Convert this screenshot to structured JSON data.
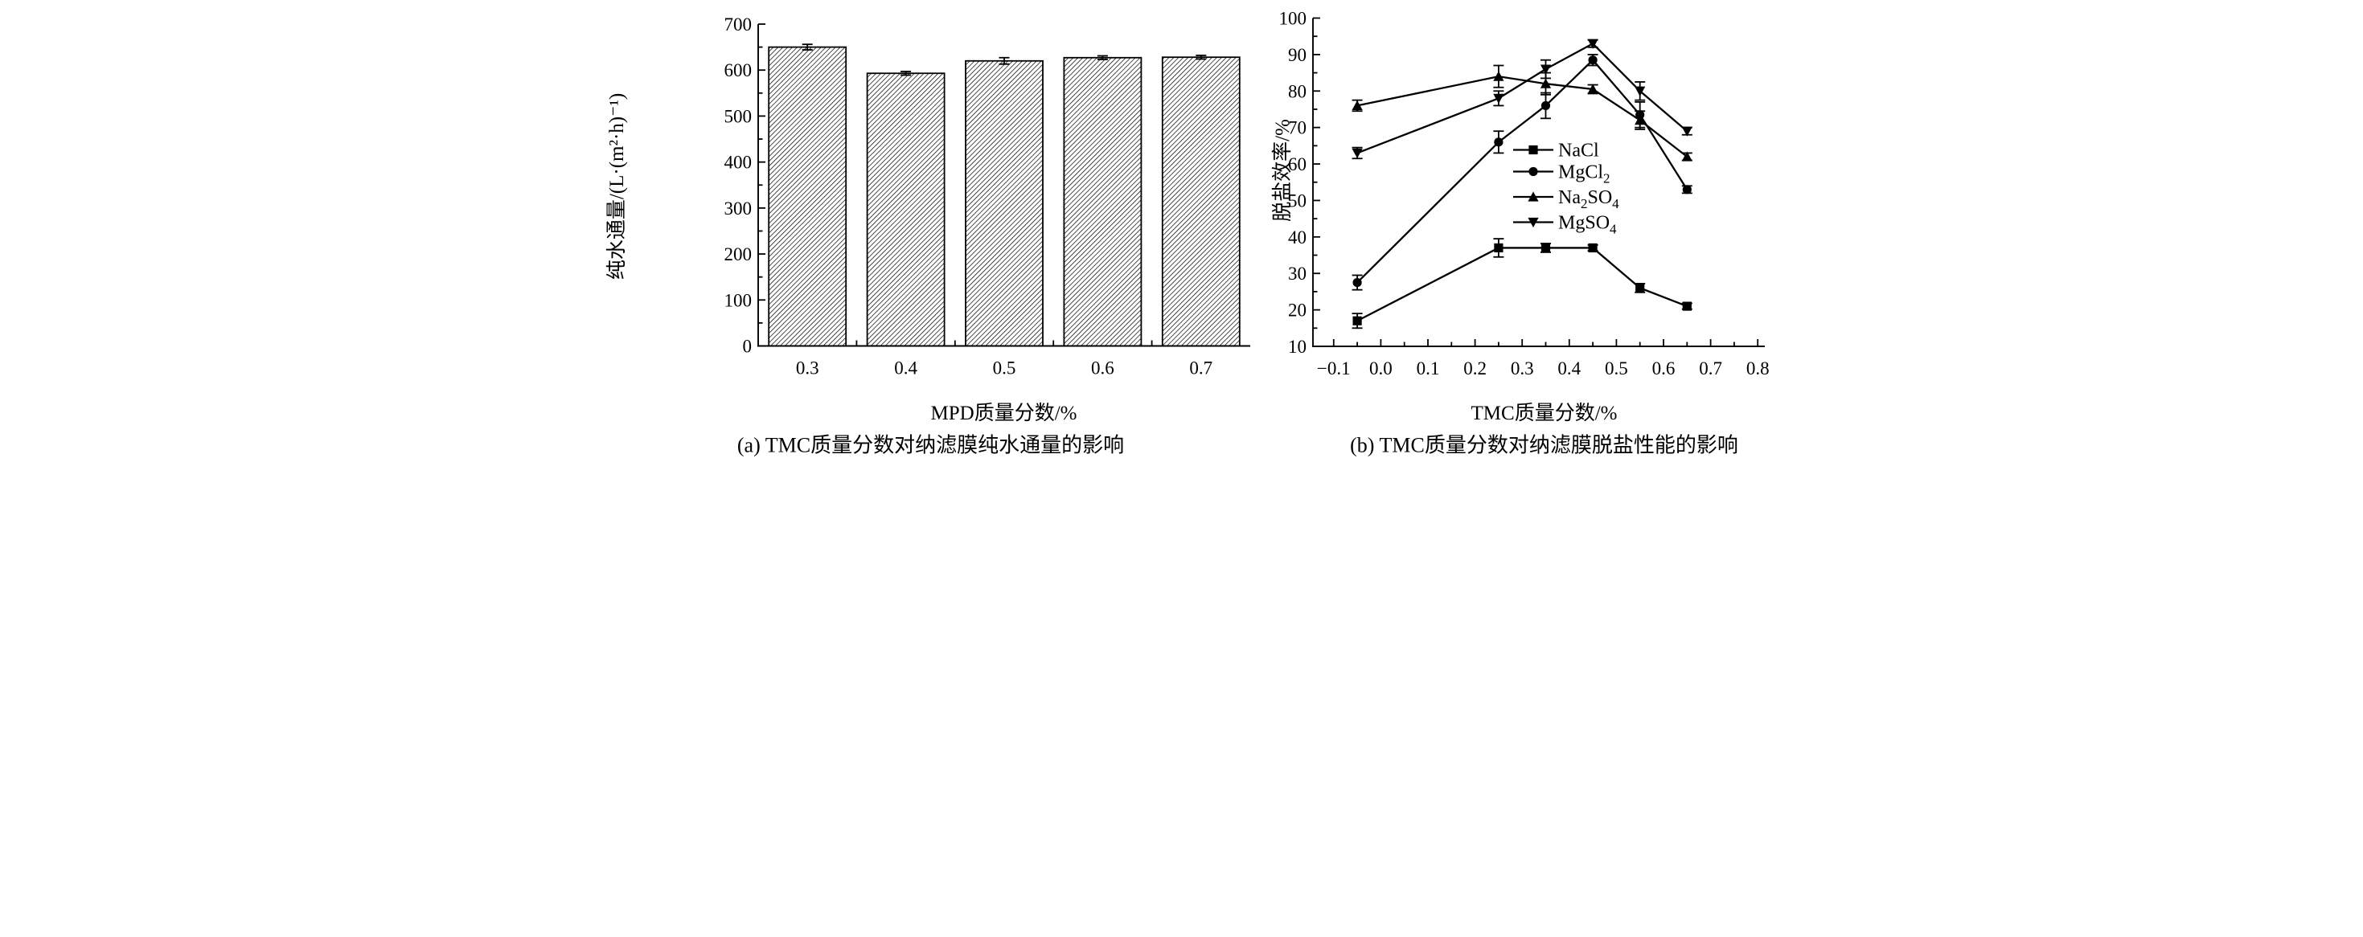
{
  "page": {
    "background": "#ffffff",
    "ink_color": "#000000"
  },
  "panel_a": {
    "caption": "(a) TMC质量分数对纳滤膜纯水通量的影响",
    "xlabel": "MPD质量分数/%",
    "ylabel": "纯水通量/(L·(m²·h)⁻¹)"
  },
  "panel_b": {
    "caption": "(b) TMC质量分数对纳滤膜脱盐性能的影响",
    "xlabel": "TMC质量分数/%",
    "ylabel": "脱盐效率/%"
  },
  "chart_data": [
    {
      "type": "bar",
      "panel": "a",
      "title": "(a) TMC质量分数对纳滤膜纯水通量的影响",
      "xlabel": "MPD质量分数/%",
      "ylabel": "纯水通量/(L·(m²·h)⁻¹)",
      "categories": [
        "0.3",
        "0.4",
        "0.5",
        "0.6",
        "0.7"
      ],
      "values": [
        650,
        593,
        620,
        627,
        628
      ],
      "errors": [
        6,
        4,
        7,
        4,
        4
      ],
      "ylim": [
        0,
        700
      ],
      "ytick_labels": [
        "0",
        "100",
        "200",
        "300",
        "400",
        "500",
        "600",
        "700"
      ],
      "ytick_major_step": 100,
      "ytick_minor_step": 50,
      "bar_style": "diagonal-hatch",
      "bar_outline_color": "#000000",
      "grid": false
    },
    {
      "type": "line",
      "panel": "b",
      "title": "(b) TMC质量分数对纳滤膜脱盐性能的影响",
      "xlabel": "TMC质量分数/%",
      "ylabel": "脱盐效率/%",
      "x": [
        -0.05,
        0.25,
        0.35,
        0.45,
        0.55,
        0.65
      ],
      "series": [
        {
          "name": "NaCl",
          "marker": "square",
          "values": [
            17,
            37,
            37,
            37,
            26,
            21
          ],
          "errors": [
            2,
            2.5,
            1.2,
            0.8,
            1.2,
            0.8
          ]
        },
        {
          "name": "MgCl2",
          "marker": "circle",
          "values": [
            27.5,
            66,
            76,
            88.5,
            73.5,
            53
          ],
          "errors": [
            2,
            3,
            3.5,
            1.5,
            3.5,
            1
          ]
        },
        {
          "name": "Na2SO4",
          "marker": "triangle-up",
          "values": [
            76,
            84,
            82,
            80.5,
            72,
            62
          ],
          "errors": [
            1.5,
            3,
            3,
            1.2,
            2.5,
            1
          ]
        },
        {
          "name": "MgSO4",
          "marker": "triangle-down",
          "values": [
            63,
            78,
            86,
            93,
            80,
            69
          ],
          "errors": [
            1.5,
            2,
            2.5,
            1,
            2.5,
            1
          ]
        }
      ],
      "legend_labels_rich": [
        [
          [
            "NaCl",
            false
          ]
        ],
        [
          [
            "MgCl",
            false
          ],
          [
            "2",
            true
          ]
        ],
        [
          [
            "Na",
            false
          ],
          [
            "2",
            true
          ],
          [
            "SO",
            false
          ],
          [
            "4",
            true
          ]
        ],
        [
          [
            "MgSO",
            false
          ],
          [
            "4",
            true
          ]
        ]
      ],
      "legend_position": "center-right",
      "xlim": [
        -0.144,
        0.815
      ],
      "ylim": [
        10,
        100
      ],
      "xtick_labels": [
        "−0.1",
        "0.0",
        "0.1",
        "0.2",
        "0.3",
        "0.4",
        "0.5",
        "0.6",
        "0.7",
        "0.8"
      ],
      "xtick_values": [
        -0.1,
        0.0,
        0.1,
        0.2,
        0.3,
        0.4,
        0.5,
        0.6,
        0.7,
        0.8
      ],
      "xtick_minor_step": 0.05,
      "ytick_labels": [
        "10",
        "20",
        "30",
        "40",
        "50",
        "60",
        "70",
        "80",
        "90",
        "100"
      ],
      "ytick_major_step": 10,
      "ytick_minor_step": 5,
      "grid": false
    }
  ]
}
